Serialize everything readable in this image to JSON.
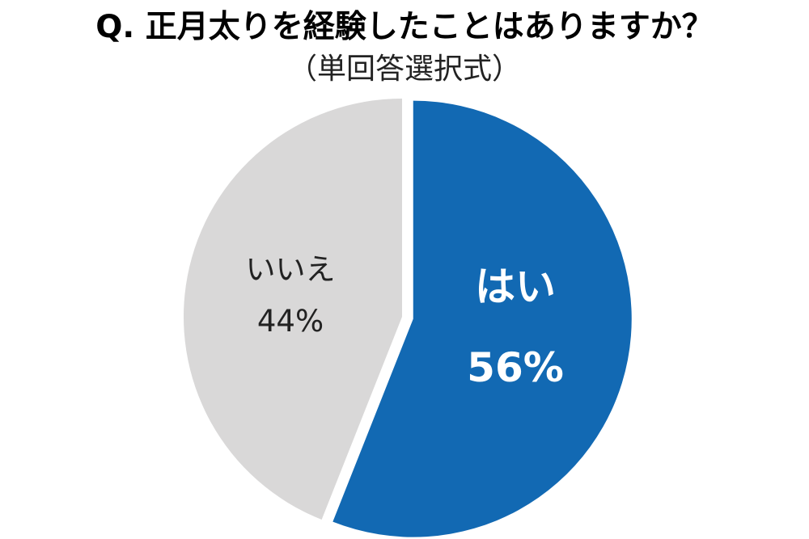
{
  "chart_data": {
    "type": "pie",
    "title": "Q. 正月太りを経験したことはありますか？",
    "subtitle": "（単回答選択式）",
    "slices": [
      {
        "label": "はい",
        "value": 56,
        "value_label": "56%",
        "color": "#1269b3",
        "exploded": true
      },
      {
        "label": "いいえ",
        "value": 44,
        "value_label": "44%",
        "color": "#d9d8d8",
        "exploded": false
      }
    ]
  }
}
